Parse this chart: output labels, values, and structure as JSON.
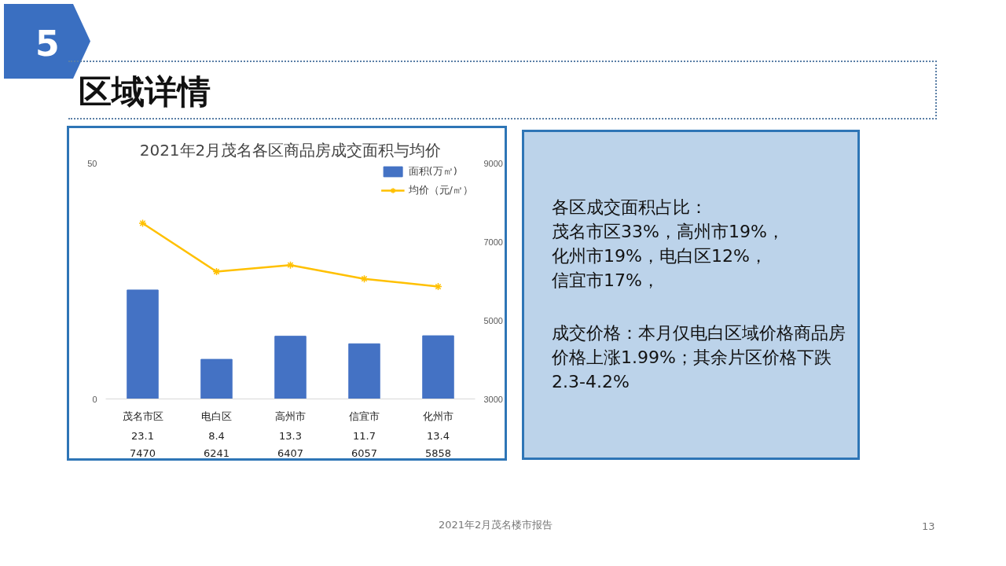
{
  "chart_data": [
    {
      "type": "bar",
      "title": "2021年2月茂名各区商品房成交面积与均价",
      "categories": [
        "茂名市区",
        "电白区",
        "高州市",
        "信宜市",
        "化州市"
      ],
      "series": [
        {
          "name": "面积(万㎡)",
          "color": "#4472c4",
          "values": [
            23.1,
            8.4,
            13.3,
            11.7,
            13.4
          ]
        },
        {
          "name": "均价（元/㎡）",
          "type": "line",
          "axis": "y2",
          "color": "#ffc000",
          "values": [
            7470,
            6241,
            6407,
            6057,
            5858
          ]
        }
      ],
      "ylim": [
        0,
        50
      ],
      "yticks": [
        0,
        50
      ],
      "y2lim": [
        3000,
        9000
      ],
      "y2ticks": [
        3000,
        5000,
        7000,
        9000
      ],
      "marker": "cross",
      "data_labels": true,
      "legend": "top right",
      "grid": false,
      "annotations": [
        "5",
        "区域详情",
        "2021年2月茂名楼市报告",
        "13"
      ]
    },
    {
      "type": "other",
      "annotations": [
        "各区成交面积占比：",
        "茂名市区33%，高州市19%，",
        "化州市19%，电白区12%，",
        "信宜市17%，",
        "成交价格：本月仅电白区域价格商品房价格上涨1.99%；其余片区价格下跌2.3-4.2%"
      ]
    }
  ]
}
